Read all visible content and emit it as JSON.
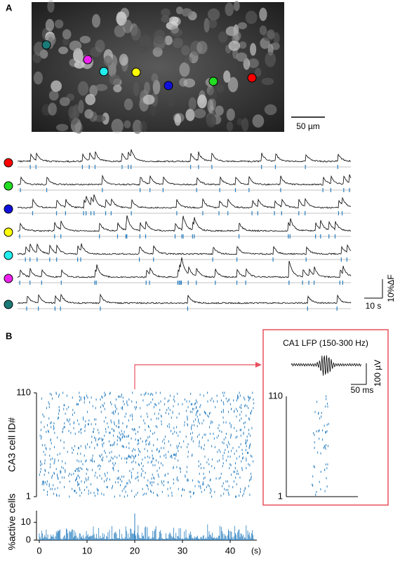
{
  "panel_a": {
    "label": "A",
    "scale_bar": "50 µm",
    "cells": [
      {
        "color": "#ff0000"
      },
      {
        "color": "#22dd22"
      },
      {
        "color": "#1010dd"
      },
      {
        "color": "#ffff00"
      },
      {
        "color": "#22eeee"
      },
      {
        "color": "#ee22ee"
      },
      {
        "color": "#1a7a78"
      }
    ],
    "trace_scale": {
      "y": "10%ΔF",
      "x": "10 s"
    }
  },
  "panel_b": {
    "label": "B",
    "raster": {
      "ylabel": "CA3 cell ID#",
      "ylim": [
        1,
        110
      ],
      "yticks": [
        1,
        110
      ],
      "xlim": [
        0,
        45
      ],
      "color": "#2a7fc0"
    },
    "histogram": {
      "ylabel": "%active cells",
      "ylim": [
        0,
        15
      ],
      "yticks": [
        0,
        10
      ],
      "xlim": [
        0,
        45
      ],
      "xticks": [
        0,
        10,
        20,
        30,
        40
      ],
      "xunit": "(s)",
      "color": "#2a7fc0"
    },
    "inset": {
      "title": "CA1 LFP (150-300 Hz)",
      "scale_y": "100 µV",
      "scale_x": "50 ms",
      "ylim": [
        1,
        110
      ],
      "yticks": [
        1,
        110
      ],
      "border": "#e8505e"
    }
  }
}
